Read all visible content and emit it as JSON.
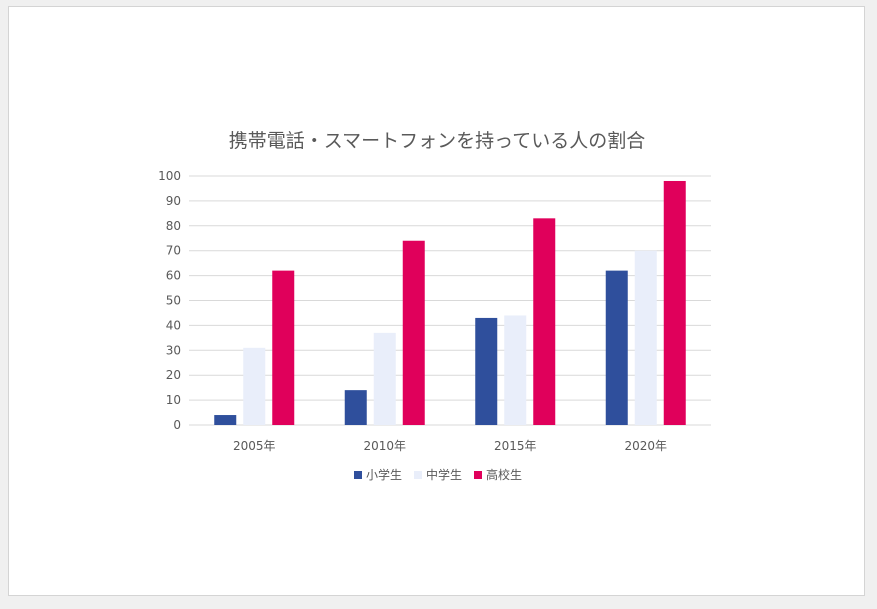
{
  "chart_data": {
    "type": "bar",
    "title": "携帯電話・スマートフォンを持っている人の割合",
    "categories": [
      "2005年",
      "2010年",
      "2015年",
      "2020年"
    ],
    "series": [
      {
        "name": "小学生",
        "color": "#2f4f9c",
        "values": [
          4,
          14,
          43,
          62
        ]
      },
      {
        "name": "中学生",
        "color": "#e9eefa",
        "values": [
          31,
          37,
          44,
          70
        ]
      },
      {
        "name": "高校生",
        "color": "#e0005b",
        "values": [
          62,
          74,
          83,
          98
        ]
      }
    ],
    "xlabel": "",
    "ylabel": "",
    "ylim": [
      0,
      100
    ],
    "yticks": [
      0,
      10,
      20,
      30,
      40,
      50,
      60,
      70,
      80,
      90,
      100
    ],
    "grid": true,
    "legend_position": "bottom"
  }
}
